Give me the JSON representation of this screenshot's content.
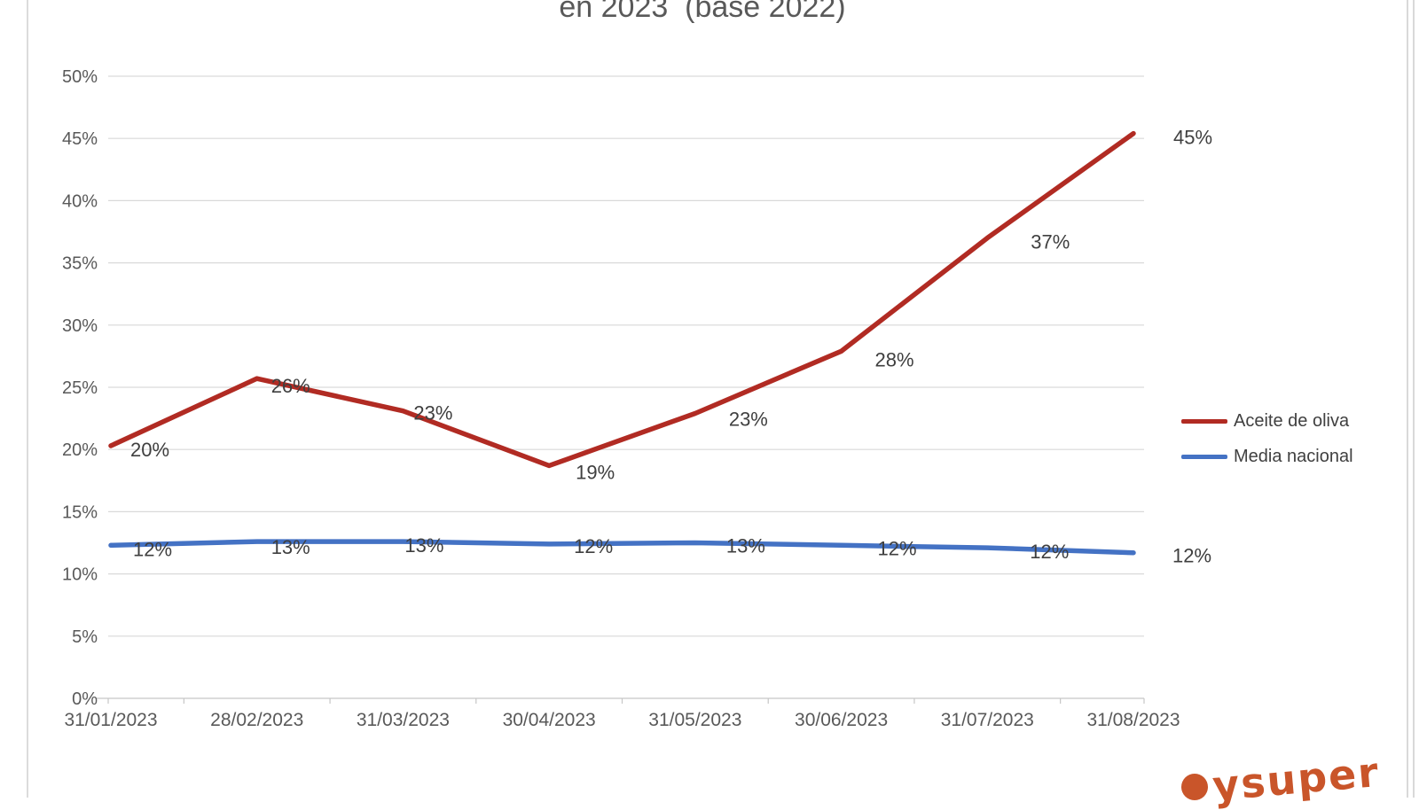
{
  "title": "en 2023  (base 2022)",
  "chart_data": {
    "type": "line",
    "title_visible_fragment": "en 2023  (base 2022)",
    "categories": [
      "31/01/2023",
      "28/02/2023",
      "31/03/2023",
      "30/04/2023",
      "31/05/2023",
      "30/06/2023",
      "31/07/2023",
      "31/08/2023"
    ],
    "series": [
      {
        "name": "Aceite de oliva",
        "color": "#b12b23",
        "values": [
          20.3,
          25.7,
          23.1,
          18.7,
          22.9,
          27.9,
          37.0,
          45.4
        ],
        "labels": [
          "20%",
          "26%",
          "23%",
          "19%",
          "23%",
          "28%",
          "37%",
          "45%"
        ]
      },
      {
        "name": "Media nacional",
        "color": "#4472c4",
        "values": [
          12.3,
          12.6,
          12.6,
          12.4,
          12.5,
          12.3,
          12.1,
          11.7
        ],
        "labels": [
          "12%",
          "13%",
          "13%",
          "12%",
          "13%",
          "12%",
          "12%",
          "12%"
        ]
      }
    ],
    "yticks": {
      "values": [
        0,
        5,
        10,
        15,
        20,
        25,
        30,
        35,
        40,
        45,
        50
      ],
      "labels": [
        "0%",
        "5%",
        "10%",
        "15%",
        "20%",
        "25%",
        "30%",
        "35%",
        "40%",
        "45%",
        "50%"
      ]
    },
    "ylim": [
      0,
      50
    ],
    "grid": true,
    "legend_position": "right",
    "data_label_color": "#3f3f3f",
    "axis_text_color": "#595959",
    "gridline_color": "#d9d9d9",
    "axisline_color": "#c6c6c6"
  },
  "footer": {
    "logo_text": "ysuper",
    "logo_color": "#c9552a"
  }
}
